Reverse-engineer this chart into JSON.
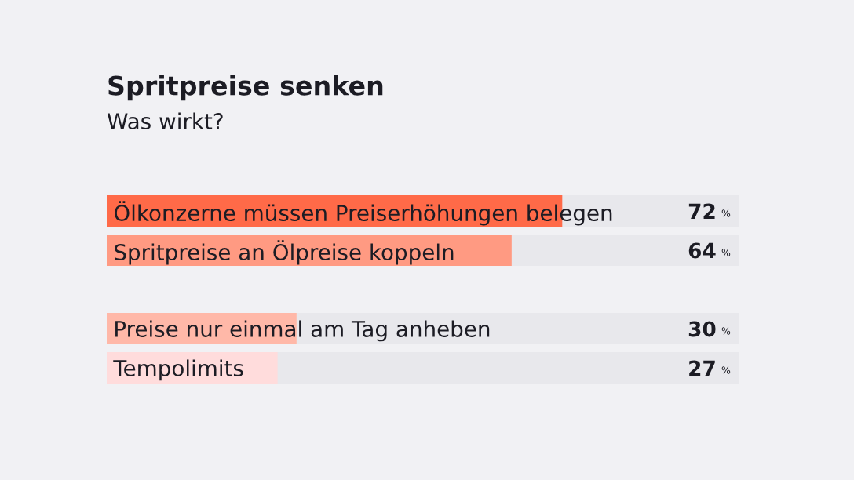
{
  "chart_data": {
    "type": "bar",
    "orientation": "horizontal",
    "title": "Spritpreise senken",
    "subtitle": "Was wirkt?",
    "categories": [
      "Ölkonzerne müssen Preiserhöhungen belegen",
      "Spritpreise an Ölpreise koppeln",
      null,
      "Preise nur einmal am Tag anheben",
      "Tempolimits"
    ],
    "values": [
      72,
      64,
      null,
      30,
      27
    ],
    "colors": [
      "#ff6a48",
      "#ff9a82",
      null,
      "#ffb8a8",
      "#ffdcdc"
    ],
    "value_labels": [
      "72 %",
      "64 %",
      null,
      "30 %",
      "27 %"
    ],
    "xlim": [
      0,
      100
    ]
  }
}
